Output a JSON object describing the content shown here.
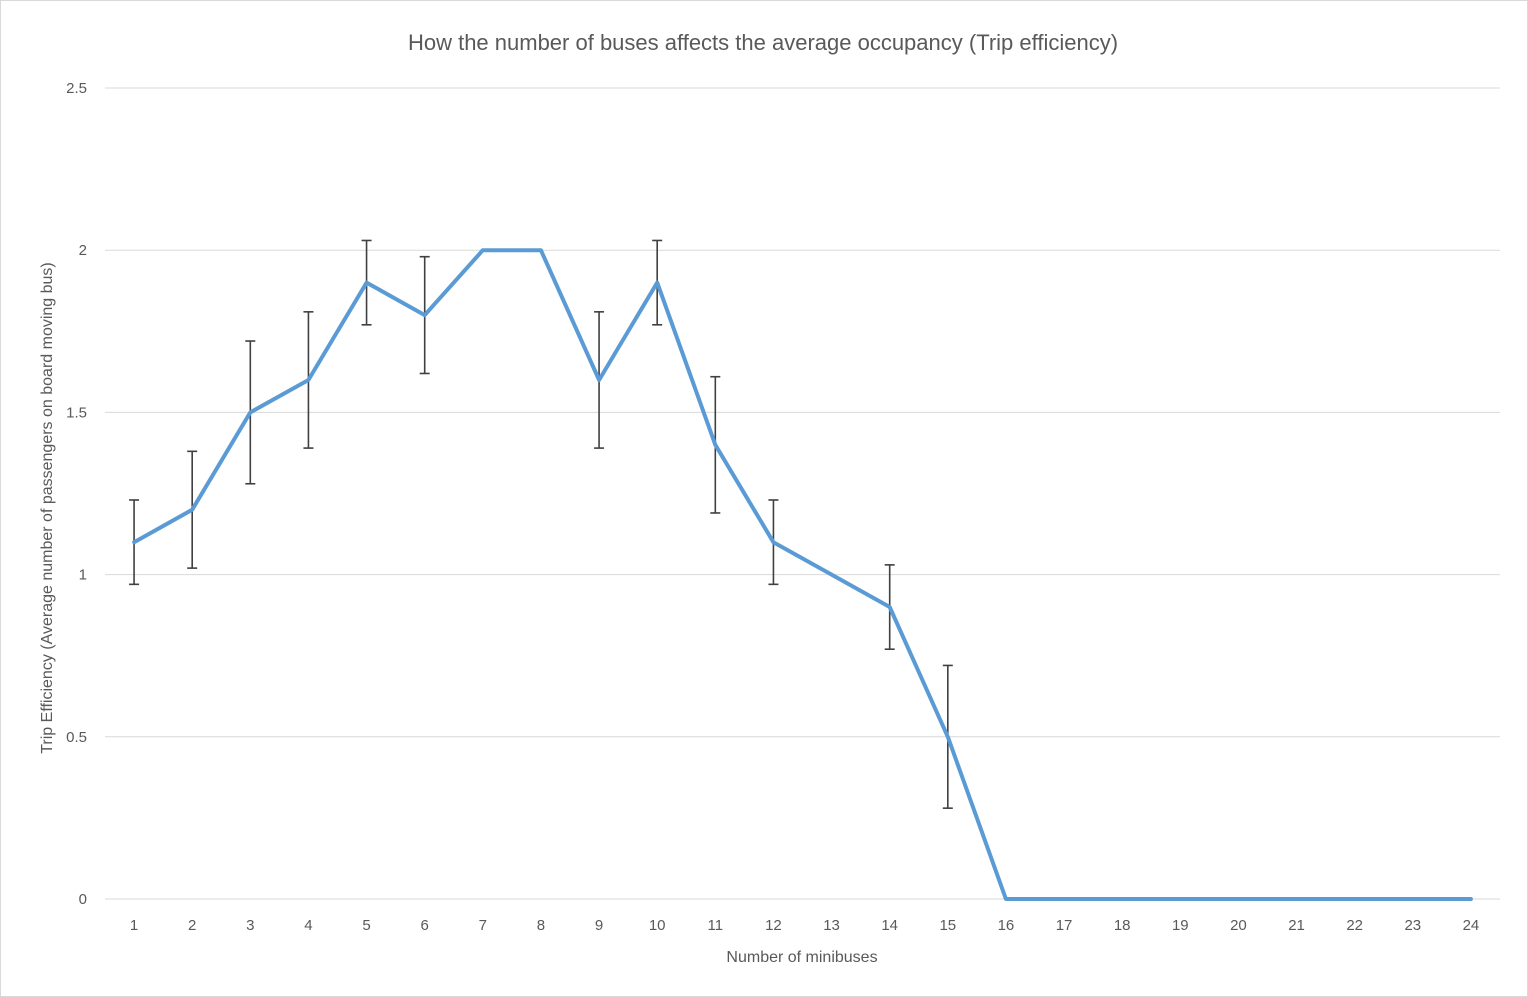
{
  "chart_data": {
    "type": "line",
    "title": "How the number of buses affects the average occupancy (Trip efficiency)",
    "xlabel": "Number of minibuses",
    "ylabel": "Trip Efficiency (Average number of passengers on board moving bus)",
    "categories": [
      "1",
      "2",
      "3",
      "4",
      "5",
      "6",
      "7",
      "8",
      "9",
      "10",
      "11",
      "12",
      "13",
      "14",
      "15",
      "16",
      "17",
      "18",
      "19",
      "20",
      "21",
      "22",
      "23",
      "24"
    ],
    "series": [
      {
        "values": [
          1.1,
          1.2,
          1.5,
          1.6,
          1.9,
          1.8,
          2.0,
          2.0,
          1.6,
          1.9,
          1.4,
          1.1,
          1.0,
          0.9,
          0.5,
          0,
          0,
          0,
          0,
          0,
          0,
          0,
          0,
          0
        ],
        "error_low": [
          0.97,
          1.02,
          1.28,
          1.39,
          1.77,
          1.62,
          null,
          null,
          1.39,
          1.77,
          1.19,
          0.97,
          null,
          0.77,
          0.28,
          null,
          null,
          null,
          null,
          null,
          null,
          null,
          null,
          null
        ],
        "error_high": [
          1.23,
          1.38,
          1.72,
          1.81,
          2.03,
          1.98,
          null,
          null,
          1.81,
          2.03,
          1.61,
          1.23,
          null,
          1.03,
          0.72,
          null,
          null,
          null,
          null,
          null,
          null,
          null,
          null,
          null
        ],
        "color": "#5b9bd5"
      }
    ],
    "ylim": [
      0,
      2.5
    ],
    "yticks": [
      "0",
      "0.5",
      "1",
      "1.5",
      "2",
      "2.5"
    ],
    "grid": true,
    "gridline_color": "#d9d9d9",
    "error_bar_color": "#404040",
    "legend": "none"
  }
}
